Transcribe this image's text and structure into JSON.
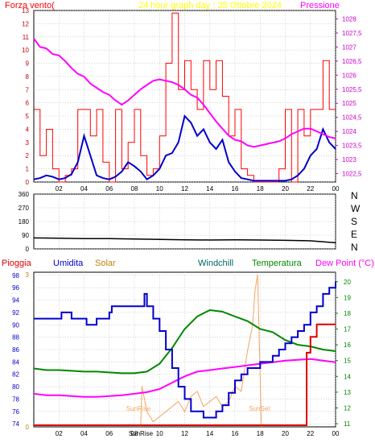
{
  "colors": {
    "wind": "#ff0000",
    "wind_mean": "#0000cc",
    "pressure": "#ff00ff",
    "grid": "#aaaaaa",
    "title": "#ffff00",
    "axis": "#000000",
    "rain": "#dd0000",
    "humidity": "#0000cc",
    "solar": "#f4a460",
    "windchill": "#006666",
    "temperature": "#008800",
    "dewpoint": "#ff00ff"
  },
  "chart_data": [
    {
      "type": "line",
      "title": "24 hour graph day : 25 Ottobre 2024",
      "left_label": "Forza vento(",
      "right_label": "Pressione",
      "x_ticks": [
        "02",
        "04",
        "06",
        "08",
        "10",
        "12",
        "14",
        "16",
        "18",
        "20",
        "22",
        "00"
      ],
      "y_ticks": [
        "0",
        "1",
        "2",
        "3",
        "4",
        "5",
        "6",
        "7",
        "8",
        "9",
        "10",
        "11",
        "12",
        "13"
      ],
      "y2_ticks": [
        "1022,5",
        "1023",
        "1023,5",
        "1024",
        "1024,5",
        "1025",
        "1025,5",
        "1026",
        "1026,5",
        "1027",
        "1027,5",
        "1028"
      ],
      "ylim": [
        0,
        13
      ],
      "y2lim": [
        1022.2,
        1028.3
      ],
      "xlim": [
        0,
        24
      ],
      "grid": true,
      "series": [
        {
          "name": "Pressione",
          "x": [
            0,
            0.5,
            1,
            1.5,
            2,
            2.5,
            3,
            3.5,
            4,
            4.5,
            5,
            5.5,
            6,
            6.5,
            7,
            7.5,
            8,
            8.5,
            9,
            9.5,
            10,
            10.5,
            11,
            11.5,
            12,
            12.5,
            13,
            13.5,
            14,
            14.5,
            15,
            15.5,
            16,
            16.5,
            17,
            17.5,
            18,
            18.5,
            19,
            19.5,
            20,
            20.5,
            21,
            21.5,
            22,
            22.5,
            23,
            23.5,
            24
          ],
          "values": [
            1027.3,
            1027.0,
            1026.95,
            1026.75,
            1026.7,
            1026.5,
            1026.25,
            1026.05,
            1025.95,
            1025.7,
            1025.55,
            1025.4,
            1025.3,
            1025.1,
            1024.95,
            1025.1,
            1025.3,
            1025.5,
            1025.65,
            1025.8,
            1025.85,
            1025.8,
            1025.75,
            1025.65,
            1025.5,
            1025.3,
            1025.2,
            1024.95,
            1024.65,
            1024.35,
            1024.1,
            1023.85,
            1023.7,
            1023.65,
            1023.5,
            1023.45,
            1023.5,
            1023.55,
            1023.6,
            1023.65,
            1023.75,
            1023.9,
            1024.0,
            1024.1,
            1024.1,
            1024.0,
            1023.9,
            1023.8,
            1023.75
          ]
        },
        {
          "name": "wind_mean",
          "x": [
            0,
            0.5,
            1,
            1.5,
            2,
            2.5,
            3,
            3.5,
            4,
            4.5,
            5,
            5.5,
            6,
            6.5,
            7,
            7.5,
            8,
            8.5,
            9,
            9.5,
            10,
            10.5,
            11,
            11.5,
            12,
            12.5,
            13,
            13.5,
            14,
            14.5,
            15,
            15.5,
            16,
            16.5,
            17,
            17.5,
            18,
            18.5,
            19,
            19.5,
            20,
            20.5,
            21,
            21.5,
            22,
            22.5,
            23,
            23.5,
            24
          ],
          "values": [
            0.2,
            0.3,
            0.5,
            0.4,
            0.2,
            0.3,
            0.6,
            1.5,
            3.5,
            2.0,
            0.5,
            0.3,
            0.2,
            0.4,
            0.8,
            1.5,
            1.2,
            0.8,
            0.2,
            0.5,
            1.0,
            2.0,
            2.2,
            3.0,
            5.0,
            4.5,
            3.5,
            4.0,
            3.0,
            2.5,
            3.2,
            1.5,
            0.8,
            0.3,
            0.2,
            0.1,
            0.1,
            0.1,
            0.1,
            0.1,
            0.1,
            0.2,
            0.5,
            1.0,
            2.0,
            2.5,
            4.0,
            3.0,
            2.5
          ]
        },
        {
          "name": "wind_gust",
          "x": [
            0,
            0.5,
            1,
            1.5,
            2,
            2.5,
            3,
            3.5,
            4,
            4.5,
            5,
            5.5,
            6,
            6.5,
            7,
            7.5,
            8,
            8.5,
            9,
            9.5,
            10,
            10.5,
            11,
            11.5,
            12,
            12.5,
            13,
            13.5,
            14,
            14.5,
            15,
            15.5,
            16,
            16.5,
            17,
            17.5,
            18,
            18.5,
            19,
            19.5,
            20,
            20.5,
            21,
            21.5,
            22,
            22.5,
            23,
            23.5,
            24
          ],
          "values": [
            5.5,
            2.0,
            4.0,
            1.0,
            0.0,
            0.5,
            1.0,
            5.5,
            5.5,
            3.5,
            5.5,
            1.5,
            0.0,
            5.5,
            1.0,
            3.0,
            5.5,
            2.0,
            0.5,
            1.0,
            3.5,
            9.0,
            12.8,
            7.0,
            9.2,
            7.0,
            5.5,
            9.2,
            7.0,
            9.2,
            6.5,
            3.5,
            5.5,
            1.0,
            0.5,
            0.0,
            0.0,
            0.0,
            0.0,
            1.0,
            5.5,
            0.0,
            5.5,
            3.5,
            5.5,
            5.5,
            9.2,
            5.5,
            5.5
          ]
        }
      ]
    },
    {
      "type": "line",
      "title": "",
      "y_ticks": [
        "N",
        "W",
        "S",
        "E",
        "N"
      ],
      "y_left_ticks": [
        "360",
        "270",
        "180",
        "90",
        "0"
      ],
      "ylim": [
        0,
        360
      ],
      "xlim": [
        0,
        24
      ],
      "grid": true,
      "series": [
        {
          "name": "direction",
          "x": [
            0,
            2,
            4,
            6,
            8,
            10,
            12,
            14,
            16,
            18,
            20,
            22,
            24
          ],
          "values": [
            72,
            70,
            68,
            67,
            65,
            62,
            60,
            58,
            60,
            58,
            56,
            53,
            40
          ]
        }
      ]
    },
    {
      "type": "line",
      "title": "",
      "x_ticks": [
        "02",
        "04",
        "06",
        "08",
        "10",
        "12",
        "14",
        "16",
        "18",
        "20",
        "22",
        "00"
      ],
      "y_ticks": [
        "74",
        "76",
        "78",
        "80",
        "82",
        "84",
        "86",
        "88",
        "90",
        "92",
        "94",
        "96",
        "98"
      ],
      "y2_ticks": [
        "11",
        "12",
        "13",
        "14",
        "15",
        "16",
        "17",
        "18",
        "19",
        "20"
      ],
      "ylim": [
        73.5,
        98.5
      ],
      "y2lim": [
        10.8,
        20.6
      ],
      "xlim": [
        0,
        24
      ],
      "grid": true,
      "labels": {
        "rain": "Pioggia",
        "humidity": "Umidita",
        "solar": "Solar",
        "windchill": "Windchill",
        "temperature": "Temperatura",
        "dewpoint": "Dew Point (°C)"
      },
      "annotations": {
        "sunrise": "SunRise",
        "sunset": "SunSet"
      },
      "solar_axis": [
        "0",
        "3"
      ],
      "series": [
        {
          "name": "Umidita",
          "x": [
            0,
            1,
            2,
            2.2,
            2.8,
            3,
            4,
            4.2,
            4.8,
            5,
            6,
            6.2,
            7,
            8,
            8.8,
            9,
            9.5,
            10,
            10.5,
            11,
            11.5,
            12,
            12.5,
            13,
            13.5,
            14,
            14.5,
            15,
            15.5,
            16,
            16.5,
            17,
            17.5,
            18,
            18.5,
            19,
            19.5,
            20,
            20.5,
            21,
            21.5,
            22,
            22.5,
            23,
            23.5,
            24
          ],
          "values": [
            91,
            91,
            91,
            92,
            92,
            91,
            91,
            90,
            90,
            91,
            92,
            93,
            93,
            93,
            95,
            93,
            91,
            89,
            86,
            83,
            80,
            78,
            76,
            76,
            75,
            75,
            76,
            77,
            79,
            81,
            82,
            83,
            83,
            84,
            84,
            85,
            86,
            87,
            88,
            89,
            90,
            92,
            93,
            95,
            96,
            97
          ]
        },
        {
          "name": "Temperatura",
          "x": [
            0,
            1,
            2,
            3,
            4,
            5,
            6,
            7,
            8,
            9,
            10,
            11,
            12,
            13,
            14,
            15,
            16,
            17,
            18,
            19,
            20,
            21,
            22,
            23,
            24
          ],
          "values": [
            14.5,
            14.4,
            14.4,
            14.35,
            14.3,
            14.3,
            14.25,
            14.2,
            14.2,
            14.3,
            14.8,
            15.8,
            17.0,
            17.8,
            18.2,
            18.1,
            17.8,
            17.5,
            17.0,
            16.8,
            16.3,
            16.0,
            15.9,
            15.7,
            15.6
          ]
        },
        {
          "name": "Dew Point (°C)",
          "x": [
            0,
            1,
            2,
            3,
            4,
            5,
            6,
            7,
            8,
            9,
            10,
            11,
            12,
            13,
            14,
            15,
            16,
            17,
            18,
            19,
            20,
            21,
            22,
            23,
            24
          ],
          "values": [
            12.9,
            12.8,
            12.8,
            12.75,
            12.7,
            12.7,
            12.75,
            12.8,
            12.9,
            13.0,
            13.2,
            13.6,
            14.0,
            14.3,
            14.4,
            14.5,
            14.6,
            14.7,
            14.8,
            14.9,
            15.0,
            15.05,
            15.1,
            15.0,
            14.9
          ]
        },
        {
          "name": "Solar",
          "x": [
            8.5,
            8.6,
            9,
            9.5,
            10,
            10.5,
            11,
            11.5,
            12,
            12.5,
            13,
            13.5,
            14,
            14.5,
            15,
            15.5,
            16,
            16.5,
            17,
            17.4,
            17.6,
            17.8,
            18,
            18.1
          ],
          "values": [
            0,
            0.8,
            0.3,
            0.1,
            0.2,
            0.3,
            0.4,
            0.5,
            0.3,
            0.6,
            0.7,
            0.4,
            0.5,
            0.6,
            0.4,
            0.5,
            0.8,
            0.7,
            1.5,
            2.0,
            2.7,
            3.0,
            1.0,
            0
          ]
        },
        {
          "name": "Pioggia",
          "x": [
            0,
            21.5,
            21.7,
            22,
            22.5,
            23,
            23.5,
            24
          ],
          "values": [
            10.9,
            10.9,
            15.5,
            16.5,
            17.3,
            17.3,
            17.3,
            17.3
          ]
        }
      ]
    }
  ]
}
